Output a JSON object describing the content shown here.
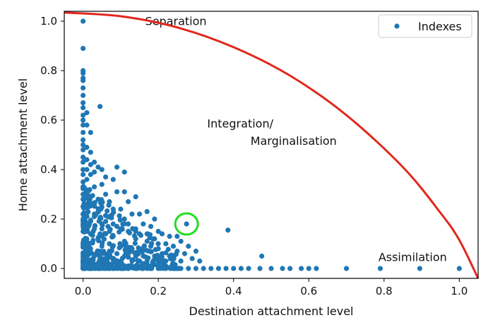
{
  "chart_data": {
    "type": "scatter",
    "xlabel": "Destination attachment level",
    "ylabel": "Home attachment level",
    "xlim": [
      -0.05,
      1.05
    ],
    "ylim": [
      -0.04,
      1.04
    ],
    "xticks": [
      "0.0",
      "0.2",
      "0.4",
      "0.6",
      "0.8",
      "1.0"
    ],
    "yticks": [
      "0.0",
      "0.2",
      "0.4",
      "0.6",
      "0.8",
      "1.0"
    ],
    "xtick_values": [
      0,
      0.2,
      0.4,
      0.6,
      0.8,
      1.0
    ],
    "ytick_values": [
      0,
      0.2,
      0.4,
      0.6,
      0.8,
      1.0
    ],
    "grid": false,
    "legend": {
      "position": "top-right",
      "entries": [
        {
          "label": "Indexes",
          "color": "#1f77b4",
          "marker": "circle"
        }
      ]
    },
    "series": [
      {
        "name": "Indexes",
        "color": "#1f77b4",
        "points": [
          [
            0.0,
            1.0
          ],
          [
            0.0,
            0.89
          ],
          [
            0.0,
            0.8
          ],
          [
            0.0,
            0.79
          ],
          [
            0.0,
            0.77
          ],
          [
            0.0,
            0.76
          ],
          [
            0.0,
            0.73
          ],
          [
            0.0,
            0.7
          ],
          [
            0.0,
            0.67
          ],
          [
            0.0,
            0.65
          ],
          [
            0.0,
            0.62
          ],
          [
            0.0,
            0.6
          ],
          [
            0.0,
            0.58
          ],
          [
            0.0,
            0.55
          ],
          [
            0.0,
            0.52
          ],
          [
            0.0,
            0.5
          ],
          [
            0.0,
            0.48
          ],
          [
            0.0,
            0.45
          ],
          [
            0.0,
            0.43
          ],
          [
            0.0,
            0.4
          ],
          [
            0.0,
            0.38
          ],
          [
            0.0,
            0.35
          ],
          [
            0.0,
            0.33
          ],
          [
            0.0,
            0.3
          ],
          [
            0.0,
            0.28
          ],
          [
            0.0,
            0.25
          ],
          [
            0.0,
            0.22
          ],
          [
            0.0,
            0.2
          ],
          [
            0.0,
            0.18
          ],
          [
            0.0,
            0.15
          ],
          [
            0.01,
            0.63
          ],
          [
            0.01,
            0.58
          ],
          [
            0.01,
            0.49
          ],
          [
            0.01,
            0.44
          ],
          [
            0.01,
            0.4
          ],
          [
            0.01,
            0.36
          ],
          [
            0.02,
            0.55
          ],
          [
            0.02,
            0.47
          ],
          [
            0.02,
            0.42
          ],
          [
            0.02,
            0.38
          ],
          [
            0.045,
            0.655
          ],
          [
            0.03,
            0.43
          ],
          [
            0.04,
            0.41
          ],
          [
            0.03,
            0.39
          ],
          [
            0.05,
            0.4
          ],
          [
            0.06,
            0.37
          ],
          [
            0.08,
            0.36
          ],
          [
            0.05,
            0.34
          ],
          [
            0.09,
            0.41
          ],
          [
            0.11,
            0.39
          ],
          [
            0.03,
            0.33
          ],
          [
            0.06,
            0.3
          ],
          [
            0.09,
            0.31
          ],
          [
            0.11,
            0.31
          ],
          [
            0.04,
            0.28
          ],
          [
            0.07,
            0.27
          ],
          [
            0.12,
            0.27
          ],
          [
            0.14,
            0.29
          ],
          [
            0.02,
            0.26
          ],
          [
            0.05,
            0.25
          ],
          [
            0.08,
            0.24
          ],
          [
            0.1,
            0.24
          ],
          [
            0.13,
            0.22
          ],
          [
            0.15,
            0.22
          ],
          [
            0.17,
            0.23
          ],
          [
            0.19,
            0.2
          ],
          [
            0.11,
            0.2
          ],
          [
            0.07,
            0.21
          ],
          [
            0.03,
            0.22
          ],
          [
            0.16,
            0.18
          ],
          [
            0.18,
            0.17
          ],
          [
            0.2,
            0.15
          ],
          [
            0.14,
            0.16
          ],
          [
            0.12,
            0.15
          ],
          [
            0.09,
            0.17
          ],
          [
            0.05,
            0.18
          ],
          [
            0.21,
            0.14
          ],
          [
            0.23,
            0.13
          ],
          [
            0.25,
            0.13
          ],
          [
            0.19,
            0.12
          ],
          [
            0.17,
            0.11
          ],
          [
            0.14,
            0.12
          ],
          [
            0.11,
            0.11
          ],
          [
            0.08,
            0.13
          ],
          [
            0.06,
            0.14
          ],
          [
            0.04,
            0.12
          ],
          [
            0.26,
            0.11
          ],
          [
            0.24,
            0.09
          ],
          [
            0.22,
            0.1
          ],
          [
            0.2,
            0.08
          ],
          [
            0.18,
            0.09
          ],
          [
            0.16,
            0.08
          ],
          [
            0.13,
            0.08
          ],
          [
            0.1,
            0.09
          ],
          [
            0.07,
            0.1
          ],
          [
            0.05,
            0.09
          ],
          [
            0.28,
            0.09
          ],
          [
            0.3,
            0.07
          ],
          [
            0.27,
            0.06
          ],
          [
            0.25,
            0.07
          ],
          [
            0.23,
            0.05
          ],
          [
            0.21,
            0.06
          ],
          [
            0.19,
            0.05
          ],
          [
            0.16,
            0.05
          ],
          [
            0.14,
            0.05
          ],
          [
            0.12,
            0.06
          ],
          [
            0.09,
            0.06
          ],
          [
            0.07,
            0.07
          ],
          [
            0.04,
            0.07
          ],
          [
            0.29,
            0.04
          ],
          [
            0.31,
            0.03
          ],
          [
            0.26,
            0.03
          ],
          [
            0.24,
            0.04
          ],
          [
            0.22,
            0.03
          ],
          [
            0.2,
            0.03
          ],
          [
            0.17,
            0.03
          ],
          [
            0.15,
            0.03
          ],
          [
            0.13,
            0.03
          ],
          [
            0.1,
            0.03
          ],
          [
            0.08,
            0.04
          ],
          [
            0.06,
            0.04
          ],
          [
            0.03,
            0.05
          ],
          [
            0.02,
            0.08
          ],
          [
            0.01,
            0.1
          ],
          [
            0.01,
            0.12
          ],
          [
            0.02,
            0.14
          ],
          [
            0.03,
            0.16
          ],
          [
            0.01,
            0.06
          ],
          [
            0.02,
            0.03
          ],
          [
            0.04,
            0.02
          ],
          [
            0.06,
            0.02
          ],
          [
            0.08,
            0.02
          ],
          [
            0.1,
            0.01
          ],
          [
            0.12,
            0.01
          ],
          [
            0.14,
            0.01
          ],
          [
            0.16,
            0.01
          ],
          [
            0.18,
            0.01
          ],
          [
            0.2,
            0.01
          ],
          [
            0.22,
            0.01
          ],
          [
            0.02,
            0.19
          ],
          [
            0.03,
            0.21
          ],
          [
            0.04,
            0.23
          ],
          [
            0.06,
            0.19
          ],
          [
            0.08,
            0.18
          ],
          [
            0.1,
            0.16
          ],
          [
            0.12,
            0.18
          ],
          [
            0.15,
            0.14
          ],
          [
            0.17,
            0.14
          ],
          [
            0.05,
            0.16
          ],
          [
            0.07,
            0.15
          ],
          [
            0.275,
            0.18
          ],
          [
            0.385,
            0.155
          ],
          [
            0.475,
            0.05
          ],
          [
            0.0,
            0.0
          ],
          [
            0.02,
            0.0
          ],
          [
            0.04,
            0.0
          ],
          [
            0.06,
            0.0
          ],
          [
            0.08,
            0.0
          ],
          [
            0.1,
            0.0
          ],
          [
            0.12,
            0.0
          ],
          [
            0.14,
            0.0
          ],
          [
            0.16,
            0.0
          ],
          [
            0.18,
            0.0
          ],
          [
            0.2,
            0.0
          ],
          [
            0.22,
            0.0
          ],
          [
            0.24,
            0.0
          ],
          [
            0.26,
            0.0
          ],
          [
            0.28,
            0.0
          ],
          [
            0.3,
            0.0
          ],
          [
            0.32,
            0.0
          ],
          [
            0.34,
            0.0
          ],
          [
            0.36,
            0.0
          ],
          [
            0.38,
            0.0
          ],
          [
            0.4,
            0.0
          ],
          [
            0.42,
            0.0
          ],
          [
            0.44,
            0.0
          ],
          [
            0.47,
            0.0
          ],
          [
            0.5,
            0.0
          ],
          [
            0.53,
            0.0
          ],
          [
            0.55,
            0.0
          ],
          [
            0.58,
            0.0
          ],
          [
            0.6,
            0.0
          ],
          [
            0.62,
            0.0
          ],
          [
            0.7,
            0.0
          ],
          [
            0.79,
            0.0
          ],
          [
            0.895,
            0.0
          ],
          [
            1.0,
            0.0
          ]
        ]
      }
    ],
    "curve": {
      "name": "boundary",
      "color": "#e0281c",
      "points": [
        [
          -0.05,
          1.035
        ],
        [
          0.1,
          1.02
        ],
        [
          0.25,
          0.975
        ],
        [
          0.4,
          0.895
        ],
        [
          0.55,
          0.78
        ],
        [
          0.7,
          0.62
        ],
        [
          0.85,
          0.41
        ],
        [
          0.95,
          0.225
        ],
        [
          1.0,
          0.115
        ],
        [
          1.05,
          -0.04
        ]
      ]
    },
    "highlight": {
      "x": 0.275,
      "y": 0.18,
      "color": "#22dd22"
    },
    "annotations": [
      {
        "text": "Separation",
        "x": 0.165,
        "y": 0.985
      },
      {
        "text": "Integration/",
        "x": 0.33,
        "y": 0.57
      },
      {
        "text": "Marginalisation",
        "x": 0.445,
        "y": 0.5
      },
      {
        "text": "Assimilation",
        "x": 0.785,
        "y": 0.03
      }
    ]
  }
}
